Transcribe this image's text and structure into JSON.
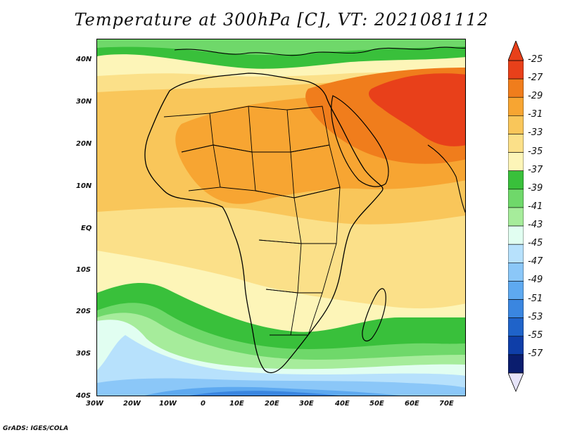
{
  "title": "Temperature at 300hPa [C], VT: 2021081112",
  "credit": "GrADS: IGES/COLA",
  "map": {
    "lon_labels": [
      "30W",
      "20W",
      "10W",
      "0",
      "10E",
      "20E",
      "30E",
      "40E",
      "50E",
      "60E",
      "70E"
    ],
    "lat_labels": [
      "40N",
      "30N",
      "20N",
      "10N",
      "EQ",
      "10S",
      "20S",
      "30S",
      "40S"
    ]
  },
  "colorbar": {
    "labels": [
      "-25",
      "-27",
      "-29",
      "-31",
      "-33",
      "-35",
      "-37",
      "-39",
      "-41",
      "-43",
      "-45",
      "-47",
      "-49",
      "-51",
      "-53",
      "-55",
      "-57"
    ],
    "colors": [
      "#e8401a",
      "#f07d1c",
      "#f7a532",
      "#f9c65a",
      "#fbe089",
      "#fdf5b8",
      "#39c03b",
      "#6fd86a",
      "#a6ec9b",
      "#e1fef1",
      "#b7e1fc",
      "#8bc7f8",
      "#5ea9f0",
      "#3a86e0",
      "#1f63c9",
      "#0f3ea8",
      "#0a1d6e"
    ]
  }
}
